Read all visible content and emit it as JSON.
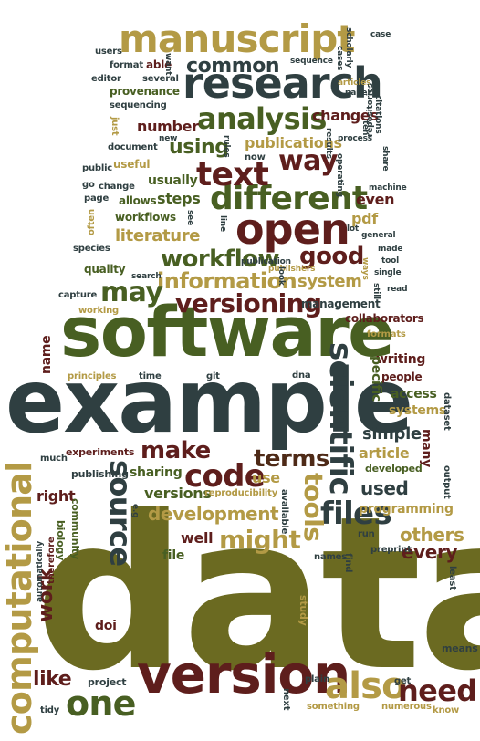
{
  "palette": {
    "olive": "#6b6a21",
    "gold": "#b39a45",
    "slate": "#2f3f41",
    "green": "#485f22",
    "brown": "#4e2a17",
    "maroon": "#5e1e1c",
    "moss": "#7b8a35"
  },
  "words": [
    {
      "text": "data",
      "color": "olive"
    },
    {
      "text": "example",
      "color": "slate"
    },
    {
      "text": "software",
      "color": "green"
    },
    {
      "text": "version",
      "color": "maroon"
    },
    {
      "text": "research",
      "color": "slate"
    },
    {
      "text": "manuscript",
      "color": "gold"
    },
    {
      "text": "computational",
      "color": "gold"
    },
    {
      "text": "open",
      "color": "maroon"
    },
    {
      "text": "different",
      "color": "green"
    },
    {
      "text": "scientific",
      "color": "slate"
    },
    {
      "text": "text",
      "color": "maroon"
    },
    {
      "text": "analysis",
      "color": "green"
    },
    {
      "text": "also",
      "color": "gold"
    },
    {
      "text": "one",
      "color": "green"
    },
    {
      "text": "files",
      "color": "slate"
    },
    {
      "text": "source",
      "color": "slate"
    },
    {
      "text": "code",
      "color": "maroon"
    },
    {
      "text": "tools",
      "color": "gold"
    },
    {
      "text": "need",
      "color": "maroon"
    },
    {
      "text": "might",
      "color": "gold"
    },
    {
      "text": "make",
      "color": "maroon"
    },
    {
      "text": "versioning",
      "color": "maroon"
    },
    {
      "text": "workflow",
      "color": "green"
    },
    {
      "text": "information",
      "color": "gold"
    },
    {
      "text": "way",
      "color": "maroon"
    },
    {
      "text": "good",
      "color": "maroon"
    },
    {
      "text": "may",
      "color": "green"
    },
    {
      "text": "terms",
      "color": "brown"
    },
    {
      "text": "development",
      "color": "gold"
    },
    {
      "text": "common",
      "color": "slate"
    },
    {
      "text": "using",
      "color": "green"
    },
    {
      "text": "work",
      "color": "maroon"
    },
    {
      "text": "like",
      "color": "maroon"
    },
    {
      "text": "used",
      "color": "slate"
    },
    {
      "text": "others",
      "color": "gold"
    },
    {
      "text": "every",
      "color": "maroon"
    },
    {
      "text": "literature",
      "color": "gold"
    },
    {
      "text": "system",
      "color": "gold"
    },
    {
      "text": "publications",
      "color": "gold"
    },
    {
      "text": "changes",
      "color": "maroon"
    },
    {
      "text": "number",
      "color": "maroon"
    },
    {
      "text": "steps",
      "color": "green"
    },
    {
      "text": "pdf",
      "color": "gold"
    },
    {
      "text": "usually",
      "color": "green"
    },
    {
      "text": "even",
      "color": "maroon"
    },
    {
      "text": "versions",
      "color": "green"
    },
    {
      "text": "sharing",
      "color": "green"
    },
    {
      "text": "simple",
      "color": "slate"
    },
    {
      "text": "access",
      "color": "green"
    },
    {
      "text": "systems",
      "color": "gold"
    },
    {
      "text": "article",
      "color": "gold"
    },
    {
      "text": "programming",
      "color": "gold"
    },
    {
      "text": "right",
      "color": "maroon"
    },
    {
      "text": "well",
      "color": "maroon"
    },
    {
      "text": "use",
      "color": "gold"
    },
    {
      "text": "file",
      "color": "green"
    },
    {
      "text": "doi",
      "color": "maroon"
    },
    {
      "text": "writing",
      "color": "maroon"
    },
    {
      "text": "specific",
      "color": "green"
    },
    {
      "text": "name",
      "color": "maroon"
    },
    {
      "text": "workflows",
      "color": "green"
    },
    {
      "text": "quality",
      "color": "green"
    },
    {
      "text": "allows",
      "color": "green"
    },
    {
      "text": "collaborators",
      "color": "maroon"
    },
    {
      "text": "management",
      "color": "slate"
    },
    {
      "text": "people",
      "color": "maroon"
    },
    {
      "text": "many",
      "color": "maroon"
    },
    {
      "text": "experiments",
      "color": "maroon"
    },
    {
      "text": "publishing",
      "color": "slate"
    },
    {
      "text": "developed",
      "color": "green"
    },
    {
      "text": "reproducibility",
      "color": "gold"
    },
    {
      "text": "community",
      "color": "green"
    },
    {
      "text": "biology",
      "color": "green"
    },
    {
      "text": "project",
      "color": "slate"
    },
    {
      "text": "tidy",
      "color": "slate"
    },
    {
      "text": "means",
      "color": "slate"
    },
    {
      "text": "numerous",
      "color": "gold"
    },
    {
      "text": "something",
      "color": "gold"
    },
    {
      "text": "know",
      "color": "gold"
    },
    {
      "text": "plain",
      "color": "slate"
    },
    {
      "text": "get",
      "color": "slate"
    },
    {
      "text": "study",
      "color": "gold"
    },
    {
      "text": "names",
      "color": "slate"
    },
    {
      "text": "preprint",
      "color": "slate"
    },
    {
      "text": "least",
      "color": "slate"
    },
    {
      "text": "run",
      "color": "slate"
    },
    {
      "text": "find",
      "color": "slate"
    },
    {
      "text": "therefore",
      "color": "maroon"
    },
    {
      "text": "automatically",
      "color": "slate"
    },
    {
      "text": "e.g",
      "color": "slate"
    },
    {
      "text": "available",
      "color": "slate"
    },
    {
      "text": "much",
      "color": "slate"
    },
    {
      "text": "principles",
      "color": "gold"
    },
    {
      "text": "time",
      "color": "slate"
    },
    {
      "text": "git",
      "color": "slate"
    },
    {
      "text": "dna",
      "color": "slate"
    },
    {
      "text": "dataset",
      "color": "slate"
    },
    {
      "text": "output",
      "color": "slate"
    },
    {
      "text": "next",
      "color": "slate"
    },
    {
      "text": "formats",
      "color": "gold"
    },
    {
      "text": "working",
      "color": "gold"
    },
    {
      "text": "capture",
      "color": "slate"
    },
    {
      "text": "search",
      "color": "slate"
    },
    {
      "text": "species",
      "color": "slate"
    },
    {
      "text": "often",
      "color": "gold"
    },
    {
      "text": "page",
      "color": "slate"
    },
    {
      "text": "go",
      "color": "slate"
    },
    {
      "text": "public",
      "color": "slate"
    },
    {
      "text": "useful",
      "color": "gold"
    },
    {
      "text": "change",
      "color": "slate"
    },
    {
      "text": "document",
      "color": "slate"
    },
    {
      "text": "new",
      "color": "slate"
    },
    {
      "text": "just",
      "color": "gold"
    },
    {
      "text": "sequencing",
      "color": "slate"
    },
    {
      "text": "provenance",
      "color": "green"
    },
    {
      "text": "editor",
      "color": "slate"
    },
    {
      "text": "format",
      "color": "slate"
    },
    {
      "text": "users",
      "color": "slate"
    },
    {
      "text": "able",
      "color": "maroon"
    },
    {
      "text": "want",
      "color": "slate"
    },
    {
      "text": "several",
      "color": "slate"
    },
    {
      "text": "sequence",
      "color": "slate"
    },
    {
      "text": "cases",
      "color": "slate"
    },
    {
      "text": "scholarly",
      "color": "slate"
    },
    {
      "text": "case",
      "color": "slate"
    },
    {
      "text": "articles",
      "color": "gold"
    },
    {
      "text": "paper",
      "color": "slate"
    },
    {
      "text": "citations",
      "color": "slate"
    },
    {
      "text": "ten",
      "color": "slate"
    },
    {
      "text": "repositories",
      "color": "slate"
    },
    {
      "text": "share",
      "color": "slate"
    },
    {
      "text": "process",
      "color": "slate"
    },
    {
      "text": "results",
      "color": "slate"
    },
    {
      "text": "rules",
      "color": "slate"
    },
    {
      "text": "now",
      "color": "slate"
    },
    {
      "text": "operating",
      "color": "slate"
    },
    {
      "text": "machine",
      "color": "slate"
    },
    {
      "text": "publishers",
      "color": "gold"
    },
    {
      "text": "see",
      "color": "slate"
    },
    {
      "text": "line",
      "color": "slate"
    },
    {
      "text": "lot",
      "color": "slate"
    },
    {
      "text": "general",
      "color": "slate"
    },
    {
      "text": "made",
      "color": "slate"
    },
    {
      "text": "tool",
      "color": "slate"
    },
    {
      "text": "single",
      "color": "slate"
    },
    {
      "text": "ways",
      "color": "gold"
    },
    {
      "text": "still",
      "color": "slate"
    },
    {
      "text": "read",
      "color": "slate"
    },
    {
      "text": "look",
      "color": "slate"
    },
    {
      "text": "publication",
      "color": "slate"
    }
  ]
}
